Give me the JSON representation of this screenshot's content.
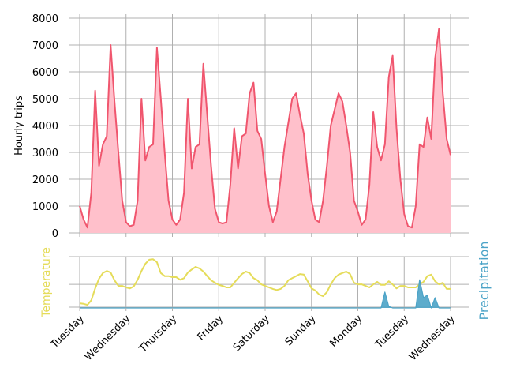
{
  "chart_data": [
    {
      "type": "area",
      "ylabel": "Hourly trips",
      "x": [
        0,
        2,
        4,
        6,
        8,
        10,
        12,
        14,
        16,
        18,
        20,
        22,
        24,
        26,
        28,
        30,
        32,
        34,
        36,
        38,
        40,
        42,
        44,
        46,
        48,
        50,
        52,
        54,
        56,
        58,
        60,
        62,
        64,
        66,
        68,
        70,
        72,
        74,
        76,
        78,
        80,
        82,
        84,
        86,
        88,
        90,
        92,
        94,
        96,
        98,
        100,
        102,
        104,
        106,
        108,
        110,
        112,
        114,
        116,
        118,
        120,
        122,
        124,
        126,
        128,
        130,
        132,
        134,
        136,
        138,
        140,
        142,
        144,
        146,
        148,
        150,
        152,
        154,
        156,
        158,
        160,
        162,
        164,
        166,
        168,
        170,
        172,
        174,
        176,
        178,
        180,
        182,
        184,
        186,
        188,
        190,
        192
      ],
      "series": [
        {
          "name": "Hourly trips",
          "color": "#f0566e",
          "fill": "#ffc0cb",
          "values": [
            1000,
            500,
            200,
            1500,
            5300,
            2500,
            3300,
            3600,
            7000,
            4900,
            3000,
            1200,
            400,
            250,
            300,
            1200,
            5000,
            2700,
            3200,
            3300,
            6900,
            5000,
            3000,
            1200,
            500,
            300,
            500,
            1500,
            5000,
            2400,
            3200,
            3300,
            6300,
            4400,
            2500,
            900,
            400,
            350,
            400,
            1800,
            3900,
            2400,
            3600,
            3700,
            5200,
            5600,
            3800,
            3500,
            2200,
            1000,
            400,
            800,
            2000,
            3200,
            4100,
            5000,
            5200,
            4400,
            3700,
            2200,
            1200,
            500,
            400,
            1200,
            2500,
            4000,
            4600,
            5200,
            4900,
            4000,
            3000,
            1200,
            800,
            300,
            500,
            1800,
            4500,
            3200,
            2700,
            3300,
            5800,
            6600,
            3900,
            2000,
            700,
            250,
            200,
            1000,
            3300,
            3200,
            4300,
            3500,
            6500,
            7600,
            5200,
            3500,
            2900
          ]
        }
      ],
      "xlim": [
        0,
        192
      ],
      "ylim": [
        0,
        8000
      ],
      "yticks": [
        0,
        1000,
        2000,
        3000,
        4000,
        5000,
        6000,
        7000,
        8000
      ],
      "grid": true
    },
    {
      "type": "line",
      "ylabel": "Temperature",
      "y2label": "Precipitation",
      "x": [
        0,
        2,
        4,
        6,
        8,
        10,
        12,
        14,
        16,
        18,
        20,
        22,
        24,
        26,
        28,
        30,
        32,
        34,
        36,
        38,
        40,
        42,
        44,
        46,
        48,
        50,
        52,
        54,
        56,
        58,
        60,
        62,
        64,
        66,
        68,
        70,
        72,
        74,
        76,
        78,
        80,
        82,
        84,
        86,
        88,
        90,
        92,
        94,
        96,
        98,
        100,
        102,
        104,
        106,
        108,
        110,
        112,
        114,
        116,
        118,
        120,
        122,
        124,
        126,
        128,
        130,
        132,
        134,
        136,
        138,
        140,
        142,
        144,
        146,
        148,
        150,
        152,
        154,
        156,
        158,
        160,
        162,
        164,
        166,
        168,
        170,
        172,
        174,
        176,
        178,
        180,
        182,
        184,
        186,
        188,
        190,
        192
      ],
      "series": [
        {
          "name": "Temperature",
          "color": "#e5dc5a",
          "axis": "y",
          "values": [
            9,
            8,
            6,
            15,
            38,
            57,
            68,
            72,
            69,
            54,
            43,
            43,
            40,
            38,
            42,
            55,
            72,
            86,
            94,
            95,
            89,
            68,
            62,
            62,
            60,
            60,
            55,
            58,
            69,
            75,
            80,
            77,
            71,
            62,
            54,
            49,
            45,
            43,
            40,
            40,
            49,
            58,
            66,
            71,
            68,
            58,
            54,
            46,
            43,
            40,
            37,
            35,
            37,
            43,
            54,
            58,
            62,
            66,
            65,
            52,
            38,
            34,
            26,
            23,
            31,
            46,
            58,
            65,
            68,
            71,
            66,
            49,
            46,
            46,
            43,
            40,
            46,
            51,
            45,
            45,
            52,
            46,
            38,
            43,
            43,
            40,
            40,
            40,
            46,
            51,
            62,
            65,
            52,
            46,
            49,
            37,
            37
          ]
        },
        {
          "name": "Precipitation",
          "color": "#4ba3c7",
          "axis": "y2",
          "values": [
            0,
            0,
            0,
            0,
            0,
            0,
            0,
            0,
            0,
            0,
            0,
            0,
            0,
            0,
            0,
            0,
            0,
            0,
            0,
            0,
            0,
            0,
            0,
            0,
            0,
            0,
            0,
            0,
            0,
            0,
            0,
            0,
            0,
            0,
            0,
            0,
            0,
            0,
            0,
            0,
            0,
            0,
            0,
            0,
            0,
            0,
            0,
            0,
            0,
            0,
            0,
            0,
            0,
            0,
            0,
            0,
            0,
            0,
            0,
            0,
            0,
            0,
            0,
            0,
            0,
            0,
            0,
            0,
            0,
            0,
            0,
            0,
            0,
            0,
            0,
            0,
            0,
            0,
            0,
            31,
            3,
            0,
            0,
            0,
            0,
            0,
            0,
            0,
            55,
            20,
            25,
            0,
            20,
            0,
            0,
            0,
            0
          ]
        }
      ],
      "xlim": [
        0,
        192
      ],
      "ylim": [
        0,
        100
      ],
      "y2lim": [
        0,
        100
      ],
      "xticks": [
        {
          "value": 0,
          "label": "Tuesday"
        },
        {
          "value": 24,
          "label": "Wednesday"
        },
        {
          "value": 48,
          "label": "Thursday"
        },
        {
          "value": 72,
          "label": "Friday"
        },
        {
          "value": 96,
          "label": "Saturday"
        },
        {
          "value": 120,
          "label": "Sunday"
        },
        {
          "value": 144,
          "label": "Monday"
        },
        {
          "value": 168,
          "label": "Tuesday"
        },
        {
          "value": 192,
          "label": "Wednesday"
        }
      ],
      "grid": true
    }
  ]
}
